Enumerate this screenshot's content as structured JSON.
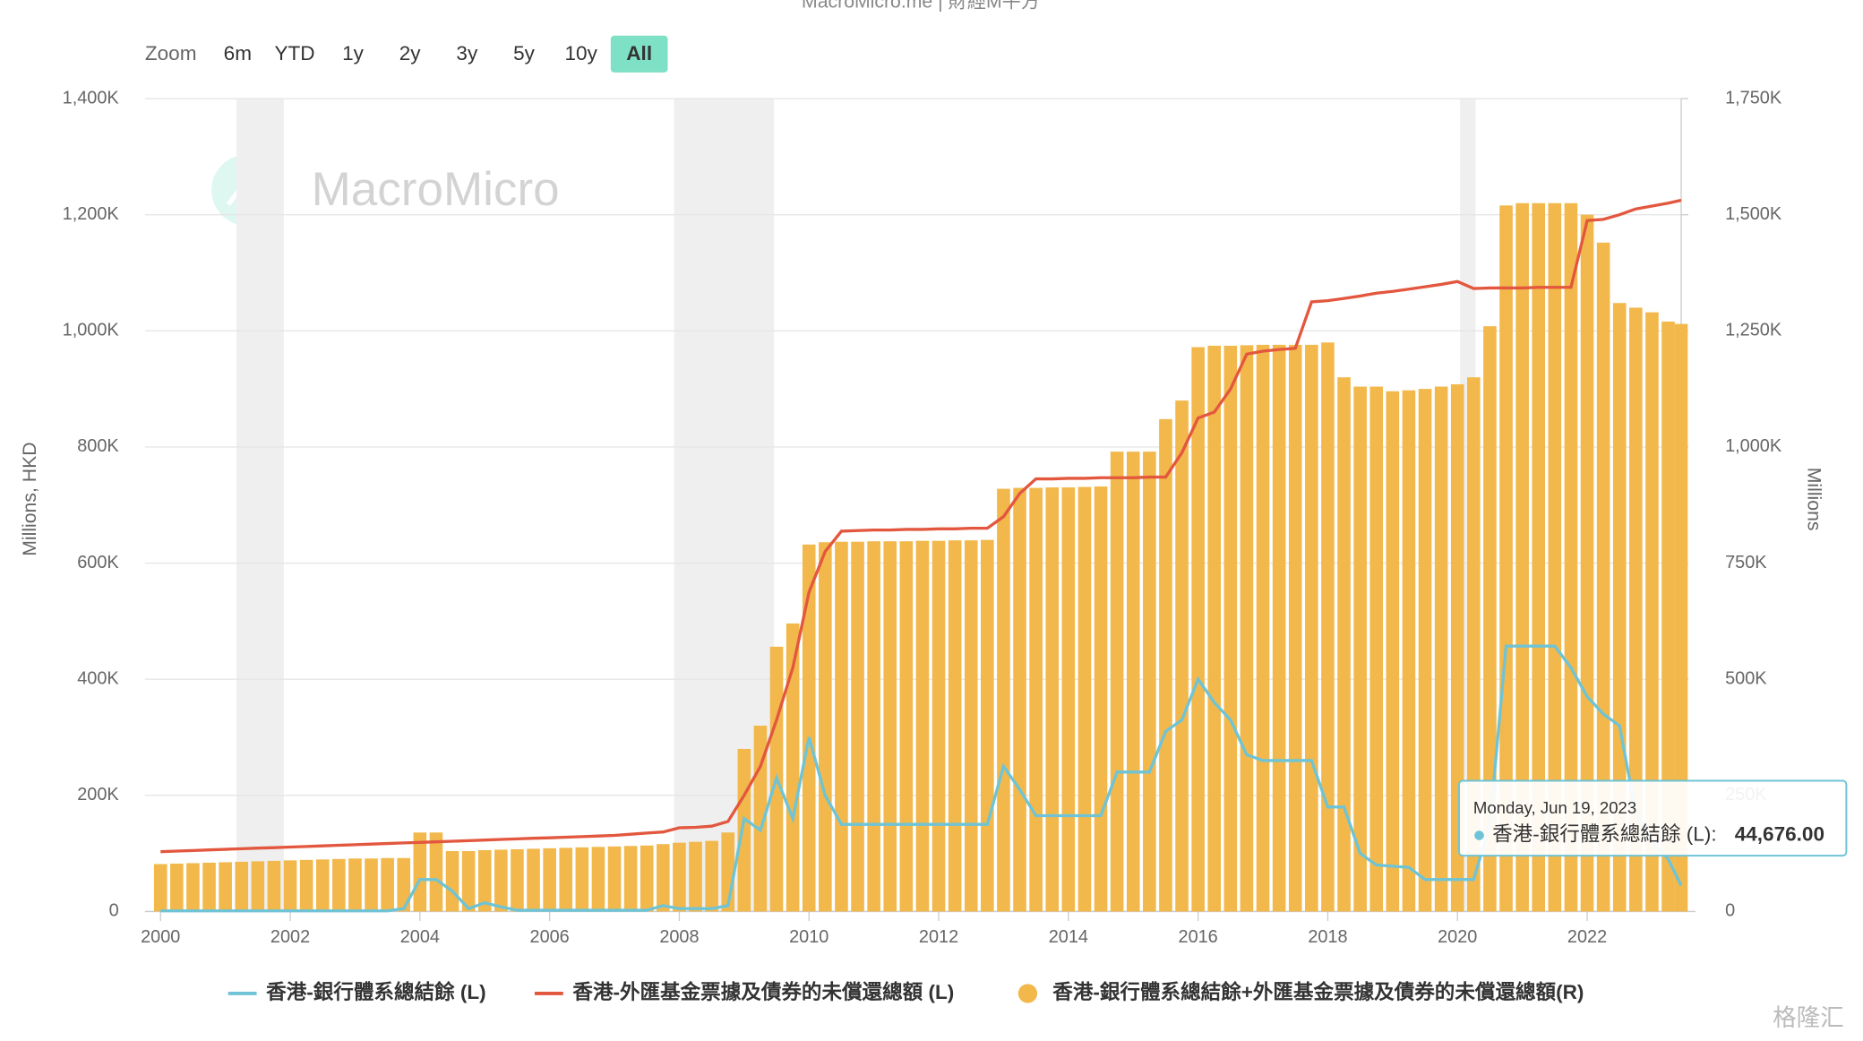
{
  "chart_data": {
    "type": "combo",
    "title": "MacroMicro.me | 財經M平方",
    "zoom": {
      "label": "Zoom",
      "buttons": [
        "6m",
        "YTD",
        "1y",
        "2y",
        "3y",
        "5y",
        "10y",
        "All"
      ],
      "active": 7
    },
    "watermark": "MacroMicro",
    "corner_mark": "格隆汇",
    "ylabel": "Millions, HKD",
    "y2label": "Millions",
    "xlim": [
      1999.76,
      2023.45
    ],
    "xticks": [
      2000,
      2002,
      2004,
      2006,
      2008,
      2010,
      2012,
      2014,
      2016,
      2018,
      2020,
      2022
    ],
    "ylim": [
      0,
      1400000
    ],
    "yticks": [
      0,
      {
        "value": 200000,
        "label": "200K"
      },
      {
        "value": 400000,
        "label": "400K"
      },
      {
        "value": 600000,
        "label": "600K"
      },
      {
        "value": 800000,
        "label": "800K"
      },
      {
        "value": 1000000,
        "label": "1,000K"
      },
      {
        "value": 1200000,
        "label": "1,200K"
      },
      {
        "value": 1400000,
        "label": "1,400K"
      }
    ],
    "y2lim": [
      0,
      1750000
    ],
    "y2ticks": [
      0,
      {
        "value": 250000,
        "label": "250K"
      },
      {
        "value": 500000,
        "label": "500K"
      },
      {
        "value": 750000,
        "label": "750K"
      },
      {
        "value": 1000000,
        "label": "1,000K"
      },
      {
        "value": 1250000,
        "label": "1,250K"
      },
      {
        "value": 1500000,
        "label": "1,500K"
      },
      {
        "value": 1750000,
        "label": "1,750K"
      }
    ],
    "grid": true,
    "plot_bands": [
      [
        2001.17,
        2001.9
      ],
      [
        2007.92,
        2009.46
      ],
      [
        2020.04,
        2020.28
      ]
    ],
    "x": [
      2000,
      2000.25,
      2000.5,
      2000.75,
      2001,
      2001.25,
      2001.5,
      2001.75,
      2002,
      2002.25,
      2002.5,
      2002.75,
      2003,
      2003.25,
      2003.5,
      2003.75,
      2004,
      2004.25,
      2004.5,
      2004.75,
      2005,
      2005.25,
      2005.5,
      2005.75,
      2006,
      2006.25,
      2006.5,
      2006.75,
      2007,
      2007.25,
      2007.5,
      2007.75,
      2008,
      2008.25,
      2008.5,
      2008.75,
      2009,
      2009.25,
      2009.5,
      2009.75,
      2010,
      2010.25,
      2010.5,
      2010.75,
      2011,
      2011.25,
      2011.5,
      2011.75,
      2012,
      2012.25,
      2012.5,
      2012.75,
      2013,
      2013.25,
      2013.5,
      2013.75,
      2014,
      2014.25,
      2014.5,
      2014.75,
      2015,
      2015.25,
      2015.5,
      2015.75,
      2016,
      2016.25,
      2016.5,
      2016.75,
      2017,
      2017.25,
      2017.5,
      2017.75,
      2018,
      2018.25,
      2018.5,
      2018.75,
      2019,
      2019.25,
      2019.5,
      2019.75,
      2020,
      2020.25,
      2020.5,
      2020.75,
      2021,
      2021.25,
      2021.5,
      2021.75,
      2022,
      2022.25,
      2022.5,
      2022.75,
      2023,
      2023.25,
      2023.45
    ],
    "series": [
      {
        "name": "香港-外匯基金票據及債券的未償還總額(R)",
        "legend_name": "香港-銀行體系總結餘+外匯基金票據及債券的未償還總額(R)",
        "kind": "bar",
        "axis": "y2",
        "color": "#f2b84b",
        "values": [
          102000,
          103000,
          104000,
          105000,
          106000,
          107000,
          108000,
          109000,
          110000,
          111000,
          112000,
          113000,
          114000,
          114000,
          115000,
          115000,
          170000,
          170000,
          130000,
          130000,
          132000,
          133000,
          134000,
          135000,
          136000,
          137000,
          138000,
          139000,
          140000,
          141000,
          142000,
          145000,
          148000,
          150000,
          152000,
          170000,
          350000,
          400000,
          570000,
          620000,
          790000,
          795000,
          796000,
          796000,
          797000,
          797000,
          797000,
          798000,
          798000,
          799000,
          799000,
          800000,
          910000,
          912000,
          912000,
          913000,
          913000,
          914000,
          915000,
          990000,
          990000,
          990000,
          1060000,
          1100000,
          1215000,
          1218000,
          1218000,
          1219000,
          1220000,
          1220000,
          1220000,
          1220000,
          1225000,
          1150000,
          1130000,
          1130000,
          1120000,
          1122000,
          1125000,
          1130000,
          1135000,
          1150000,
          1260000,
          1520000,
          1525000,
          1525000,
          1525000,
          1525000,
          1500000,
          1440000,
          1310000,
          1300000,
          1290000,
          1270000,
          1265000
        ]
      },
      {
        "name": "香港-外匯基金票據及債券的未償還總額 (L)",
        "kind": "line",
        "axis": "y",
        "color": "#e2573e",
        "values": [
          103000,
          104000,
          105000,
          106000,
          107000,
          108000,
          109000,
          110000,
          111000,
          112000,
          113000,
          114000,
          115000,
          116000,
          117000,
          118000,
          119000,
          120000,
          121000,
          122000,
          123000,
          124000,
          125000,
          126000,
          127000,
          128000,
          129000,
          130000,
          131000,
          133000,
          135000,
          137000,
          144000,
          145000,
          147000,
          155000,
          200000,
          250000,
          330000,
          420000,
          550000,
          620000,
          655000,
          656000,
          657000,
          657000,
          658000,
          658000,
          659000,
          659000,
          660000,
          660000,
          680000,
          720000,
          745000,
          745000,
          746000,
          746000,
          747000,
          747000,
          747000,
          748000,
          748000,
          790000,
          850000,
          860000,
          900000,
          960000,
          965000,
          968000,
          970000,
          1050000,
          1052000,
          1056000,
          1060000,
          1065000,
          1068000,
          1072000,
          1076000,
          1080000,
          1085000,
          1073000,
          1074000,
          1074000,
          1074000,
          1075000,
          1075000,
          1075000,
          1190000,
          1192000,
          1200000,
          1210000,
          1215000,
          1220000,
          1225000
        ]
      },
      {
        "name": "香港-銀行體系總結餘 (L)",
        "kind": "line",
        "axis": "y",
        "color": "#6ec4d6",
        "values": [
          1000,
          1000,
          1000,
          1000,
          1000,
          1000,
          1000,
          1000,
          1000,
          1000,
          1000,
          1000,
          1000,
          1000,
          1000,
          5000,
          55000,
          55000,
          35000,
          5000,
          15000,
          8000,
          2000,
          2000,
          2000,
          2000,
          2000,
          2000,
          2000,
          2000,
          2000,
          10000,
          5000,
          5000,
          5000,
          10000,
          160000,
          140000,
          230000,
          160000,
          300000,
          200000,
          150000,
          150000,
          150000,
          150000,
          150000,
          150000,
          150000,
          150000,
          150000,
          150000,
          250000,
          210000,
          165000,
          165000,
          165000,
          165000,
          165000,
          240000,
          240000,
          240000,
          310000,
          330000,
          400000,
          360000,
          330000,
          270000,
          260000,
          260000,
          260000,
          260000,
          180000,
          180000,
          100000,
          80000,
          78000,
          76000,
          55000,
          55000,
          55000,
          55000,
          150000,
          457000,
          457000,
          457000,
          457000,
          420000,
          370000,
          340000,
          320000,
          170000,
          120000,
          90000,
          44676
        ]
      }
    ],
    "tooltip": {
      "date": "Monday, Jun 19, 2023",
      "text": "香港-銀行體系總結餘 (L):",
      "value": 44676,
      "value_label": "44,676.00"
    }
  }
}
